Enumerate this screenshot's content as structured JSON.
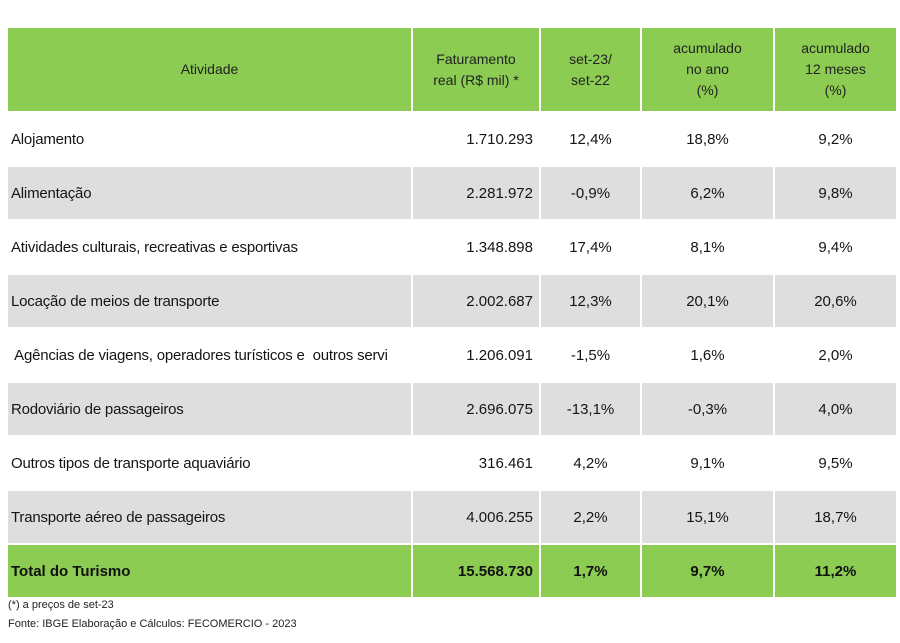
{
  "header": {
    "col1": "Atividade",
    "col2_line1": "Faturamento",
    "col2_line2": "real (R$ mil) *",
    "col3_line1": "set-23/",
    "col3_line2": "set-22",
    "col4_line1": "acumulado",
    "col4_line2": "no ano",
    "col4_line3": "(%)",
    "col5_line1": "acumulado",
    "col5_line2": "12 meses",
    "col5_line3": "(%)"
  },
  "rows": [
    {
      "name": "Alojamento",
      "revenue": "1.710.293",
      "yoy": "12,4%",
      "ytd": "18,8%",
      "m12": "9,2%"
    },
    {
      "name": "Alimentação",
      "revenue": "2.281.972",
      "yoy": "-0,9%",
      "ytd": "6,2%",
      "m12": "9,8%"
    },
    {
      "name": "Atividades culturais, recreativas e esportivas",
      "revenue": "1.348.898",
      "yoy": "17,4%",
      "ytd": "8,1%",
      "m12": "9,4%"
    },
    {
      "name": "Locação de meios de transporte",
      "revenue": "2.002.687",
      "yoy": "12,3%",
      "ytd": "20,1%",
      "m12": "20,6%"
    },
    {
      "name": " Agências de viagens, operadores turísticos e  outros servi",
      "revenue": "1.206.091",
      "yoy": "-1,5%",
      "ytd": "1,6%",
      "m12": "2,0%"
    },
    {
      "name": "Rodoviário de passageiros",
      "revenue": "2.696.075",
      "yoy": "-13,1%",
      "ytd": "-0,3%",
      "m12": "4,0%"
    },
    {
      "name": "Outros tipos de transporte aquaviário",
      "revenue": "316.461",
      "yoy": "4,2%",
      "ytd": "9,1%",
      "m12": "9,5%"
    },
    {
      "name": "Transporte aéreo de passageiros",
      "revenue": "4.006.255",
      "yoy": "2,2%",
      "ytd": "15,1%",
      "m12": "18,7%"
    }
  ],
  "total": {
    "name": "Total do Turismo",
    "revenue": "15.568.730",
    "yoy": "1,7%",
    "ytd": "9,7%",
    "m12": "11,2%"
  },
  "notes": {
    "note1": "(*) a preços de set-23",
    "note2": "Fonte: IBGE Elaboração e Cálculos: FECOMERCIO - 2023"
  },
  "colors": {
    "header_bg": "#8ccc52",
    "alt_row_bg": "#dedede"
  }
}
